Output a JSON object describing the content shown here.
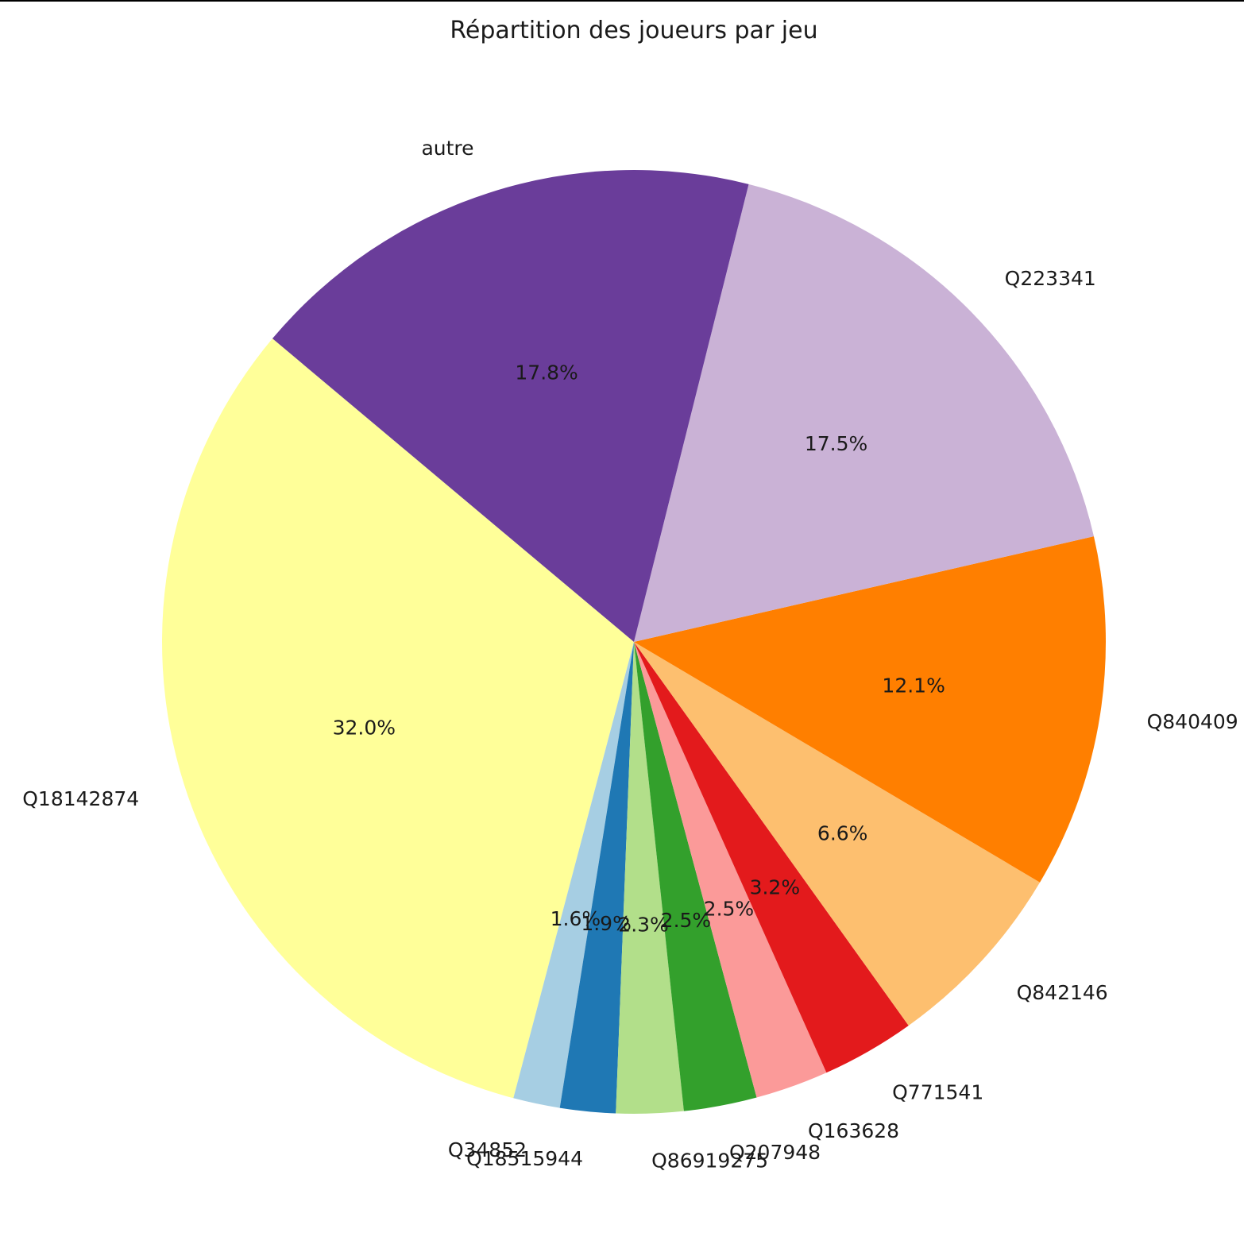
{
  "chart_data": {
    "type": "pie",
    "title": "Répartition des joueurs par jeu",
    "start_angle_deg": 140,
    "direction": "counterclockwise",
    "slices": [
      {
        "label": "Q18142874",
        "value": 32.0,
        "pct_text": "32.0%",
        "color": "#ffff99"
      },
      {
        "label": "Q34852",
        "value": 1.6,
        "pct_text": "1.6%",
        "color": "#a6cee3"
      },
      {
        "label": "Q18515944",
        "value": 1.9,
        "pct_text": "1.9%",
        "color": "#1f78b4"
      },
      {
        "label": "Q86919275",
        "value": 2.3,
        "pct_text": "2.3%",
        "color": "#b2df8a"
      },
      {
        "label": "Q207948",
        "value": 2.5,
        "pct_text": "2.5%",
        "color": "#33a02c"
      },
      {
        "label": "Q163628",
        "value": 2.5,
        "pct_text": "2.5%",
        "color": "#fb9a99"
      },
      {
        "label": "Q771541",
        "value": 3.2,
        "pct_text": "3.2%",
        "color": "#e31a1c"
      },
      {
        "label": "Q842146",
        "value": 6.6,
        "pct_text": "6.6%",
        "color": "#fdbf6f"
      },
      {
        "label": "Q840409",
        "value": 12.1,
        "pct_text": "12.1%",
        "color": "#ff7f00"
      },
      {
        "label": "Q223341",
        "value": 17.5,
        "pct_text": "17.5%",
        "color": "#cab2d6"
      },
      {
        "label": "autre",
        "value": 17.8,
        "pct_text": "17.8%",
        "color": "#6a3d9a"
      }
    ]
  }
}
